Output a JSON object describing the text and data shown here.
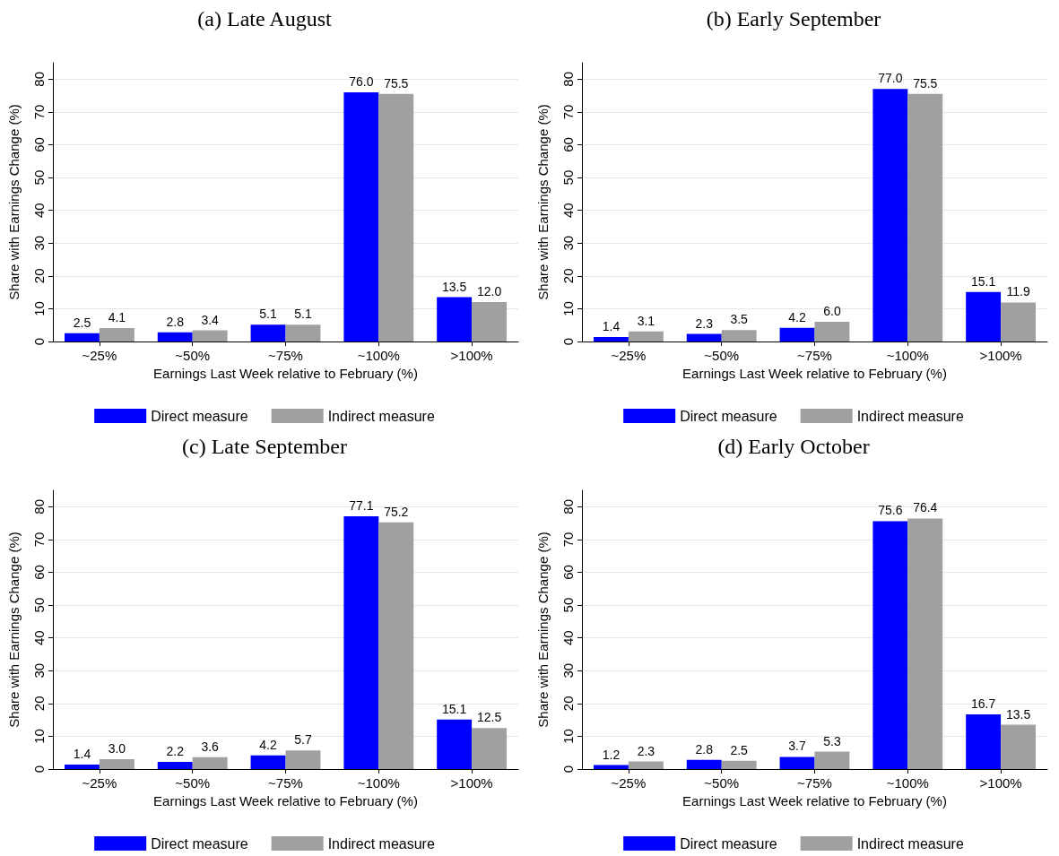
{
  "chart_data": [
    {
      "type": "bar",
      "title": "(a) Late August",
      "xlabel": "Earnings Last Week relative to February (%)",
      "ylabel": "Share with Earnings Change (%)",
      "categories": [
        "~25%",
        "~50%",
        "~75%",
        "~100%",
        ">100%"
      ],
      "ylim": [
        0,
        85
      ],
      "yticks": [
        0,
        10,
        20,
        30,
        40,
        50,
        60,
        70,
        80
      ],
      "grid": "y",
      "legend": "bottom",
      "series": [
        {
          "name": "Direct measure",
          "color": "#0000ff",
          "values": [
            2.5,
            2.8,
            5.1,
            76.0,
            13.5
          ],
          "value_labels": [
            "2.5",
            "2.8",
            "5.1",
            "76.0",
            "13.5"
          ]
        },
        {
          "name": "Indirect measure",
          "color": "#a0a0a0",
          "values": [
            4.1,
            3.4,
            5.1,
            75.5,
            12.0
          ],
          "value_labels": [
            "4.1",
            "3.4",
            "5.1",
            "75.5",
            "12.0"
          ]
        }
      ]
    },
    {
      "type": "bar",
      "title": "(b) Early September",
      "xlabel": "Earnings Last Week relative to February (%)",
      "ylabel": "Share with Earnings Change (%)",
      "categories": [
        "~25%",
        "~50%",
        "~75%",
        "~100%",
        ">100%"
      ],
      "ylim": [
        0,
        85
      ],
      "yticks": [
        0,
        10,
        20,
        30,
        40,
        50,
        60,
        70,
        80
      ],
      "grid": "y",
      "legend": "bottom",
      "series": [
        {
          "name": "Direct measure",
          "color": "#0000ff",
          "values": [
            1.4,
            2.3,
            4.2,
            77.0,
            15.1
          ],
          "value_labels": [
            "1.4",
            "2.3",
            "4.2",
            "77.0",
            "15.1"
          ]
        },
        {
          "name": "Indirect measure",
          "color": "#a0a0a0",
          "values": [
            3.1,
            3.5,
            6.0,
            75.5,
            11.9
          ],
          "value_labels": [
            "3.1",
            "3.5",
            "6.0",
            "75.5",
            "11.9"
          ]
        }
      ]
    },
    {
      "type": "bar",
      "title": "(c) Late September",
      "xlabel": "Earnings Last Week relative to February (%)",
      "ylabel": "Share with Earnings Change (%)",
      "categories": [
        "~25%",
        "~50%",
        "~75%",
        "~100%",
        ">100%"
      ],
      "ylim": [
        0,
        85
      ],
      "yticks": [
        0,
        10,
        20,
        30,
        40,
        50,
        60,
        70,
        80
      ],
      "grid": "y",
      "legend": "bottom",
      "series": [
        {
          "name": "Direct measure",
          "color": "#0000ff",
          "values": [
            1.4,
            2.2,
            4.2,
            77.1,
            15.1
          ],
          "value_labels": [
            "1.4",
            "2.2",
            "4.2",
            "77.1",
            "15.1"
          ]
        },
        {
          "name": "Indirect measure",
          "color": "#a0a0a0",
          "values": [
            3.0,
            3.6,
            5.7,
            75.2,
            12.5
          ],
          "value_labels": [
            "3.0",
            "3.6",
            "5.7",
            "75.2",
            "12.5"
          ]
        }
      ]
    },
    {
      "type": "bar",
      "title": "(d) Early October",
      "xlabel": "Earnings Last Week relative to February (%)",
      "ylabel": "Share with Earnings Change (%)",
      "categories": [
        "~25%",
        "~50%",
        "~75%",
        "~100%",
        ">100%"
      ],
      "ylim": [
        0,
        85
      ],
      "yticks": [
        0,
        10,
        20,
        30,
        40,
        50,
        60,
        70,
        80
      ],
      "grid": "y",
      "legend": "bottom",
      "series": [
        {
          "name": "Direct measure",
          "color": "#0000ff",
          "values": [
            1.2,
            2.8,
            3.7,
            75.6,
            16.7
          ],
          "value_labels": [
            "1.2",
            "2.8",
            "3.7",
            "75.6",
            "16.7"
          ]
        },
        {
          "name": "Indirect measure",
          "color": "#a0a0a0",
          "values": [
            2.3,
            2.5,
            5.3,
            76.4,
            13.5
          ],
          "value_labels": [
            "2.3",
            "2.5",
            "5.3",
            "76.4",
            "13.5"
          ]
        }
      ]
    }
  ]
}
